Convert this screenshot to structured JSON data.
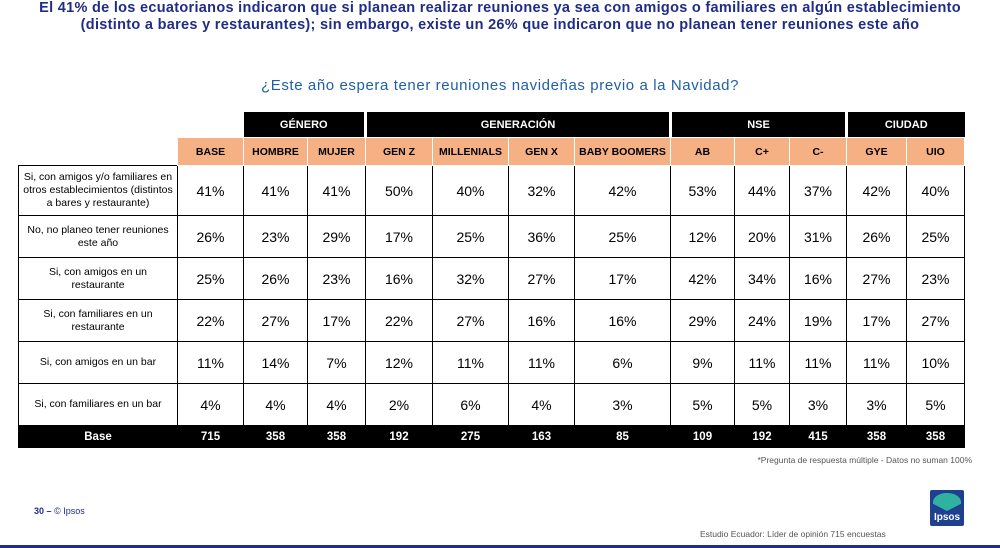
{
  "headline": "El 41% de los ecuatorianos indicaron que si planean realizar reuniones ya sea con amigos o familiares en algún establecimiento (distinto a bares y restaurantes); sin embargo, existe un 26% que indicaron que no planean tener reuniones este año",
  "question": "¿Este año espera tener reuniones navideñas previo a la Navidad?",
  "groups": {
    "genero": "GÉNERO",
    "generacion": "GENERACIÓN",
    "nse": "NSE",
    "ciudad": "CIUDAD"
  },
  "columns": [
    "BASE",
    "HOMBRE",
    "MUJER",
    "GEN Z",
    "MILLENIALS",
    "GEN X",
    "BABY BOOMERS",
    "AB",
    "C+",
    "C-",
    "GYE",
    "UIO"
  ],
  "rows": [
    {
      "label": "Si, con amigos y/o familiares en otros establecimientos (distintos a bares y restaurante)",
      "values": [
        "41%",
        "41%",
        "41%",
        "50%",
        "40%",
        "32%",
        "42%",
        "53%",
        "44%",
        "37%",
        "42%",
        "40%"
      ]
    },
    {
      "label": "No, no planeo tener reuniones este año",
      "values": [
        "26%",
        "23%",
        "29%",
        "17%",
        "25%",
        "36%",
        "25%",
        "12%",
        "20%",
        "31%",
        "26%",
        "25%"
      ]
    },
    {
      "label": "Si, con amigos en un restaurante",
      "values": [
        "25%",
        "26%",
        "23%",
        "16%",
        "32%",
        "27%",
        "17%",
        "42%",
        "34%",
        "16%",
        "27%",
        "23%"
      ]
    },
    {
      "label": "Si, con familiares en un restaurante",
      "values": [
        "22%",
        "27%",
        "17%",
        "22%",
        "27%",
        "16%",
        "16%",
        "29%",
        "24%",
        "19%",
        "17%",
        "27%"
      ]
    },
    {
      "label": "Si, con amigos en un bar",
      "values": [
        "11%",
        "14%",
        "7%",
        "12%",
        "11%",
        "11%",
        "6%",
        "9%",
        "11%",
        "11%",
        "11%",
        "10%"
      ]
    },
    {
      "label": "Si, con familiares en un bar",
      "values": [
        "4%",
        "4%",
        "4%",
        "2%",
        "6%",
        "4%",
        "3%",
        "5%",
        "5%",
        "3%",
        "3%",
        "5%"
      ]
    }
  ],
  "base": {
    "label": "Base",
    "values": [
      "715",
      "358",
      "358",
      "192",
      "275",
      "163",
      "85",
      "109",
      "192",
      "415",
      "358",
      "358"
    ]
  },
  "note": "*Pregunta de respuesta múltiple - Datos no suman 100%",
  "page": {
    "number": "30",
    "dash": "–",
    "copyright": "© Ipsos"
  },
  "footer": "Estudio Ecuador: Líder de opinión 715 encuestas",
  "logo_text": "Ipsos",
  "colors": {
    "header_orange": "#f5b183",
    "title_blue": "#1f2d86",
    "question_blue": "#1f5fa8"
  }
}
